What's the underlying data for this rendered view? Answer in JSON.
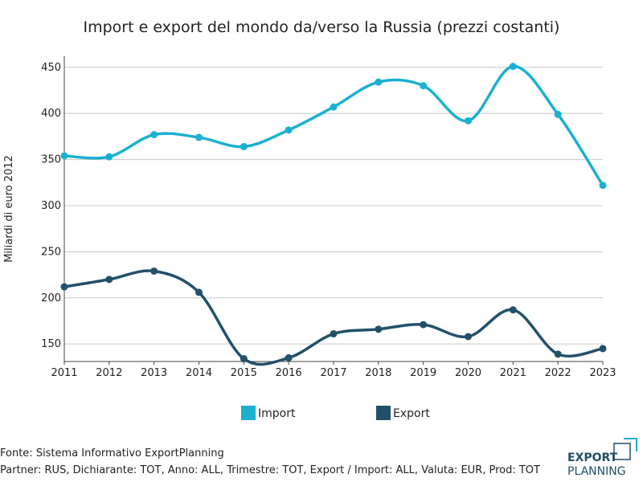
{
  "chart_data": {
    "type": "line",
    "title": "Import e export del mondo da/verso la Russia (prezzi costanti)",
    "ylabel": "Miliardi di euro 2012",
    "xlabel": "",
    "x": [
      2011,
      2012,
      2013,
      2014,
      2015,
      2016,
      2017,
      2018,
      2019,
      2020,
      2021,
      2022,
      2023
    ],
    "ylim": [
      131,
      462
    ],
    "yticks": [
      150,
      200,
      250,
      300,
      350,
      400,
      450
    ],
    "grid": true,
    "legend_position": "bottom",
    "series": [
      {
        "name": "Import",
        "color": "#1bb0d0",
        "values": [
          354,
          353,
          377,
          374,
          364,
          382,
          407,
          434,
          430,
          392,
          451,
          399,
          322
        ]
      },
      {
        "name": "Export",
        "color": "#22506a",
        "values": [
          212,
          220,
          229,
          206,
          134,
          135,
          161,
          166,
          171,
          158,
          187,
          139,
          145
        ]
      }
    ]
  },
  "footer": {
    "source": "Fonte: Sistema Informativo ExportPlanning",
    "filters": "Partner: RUS, Dichiarante: TOT, Anno: ALL, Trimestre: TOT, Export / Import: ALL, Valuta: EUR, Prod: TOT"
  },
  "logo": {
    "line1": "EXPORT",
    "line2": "PLANNING"
  }
}
